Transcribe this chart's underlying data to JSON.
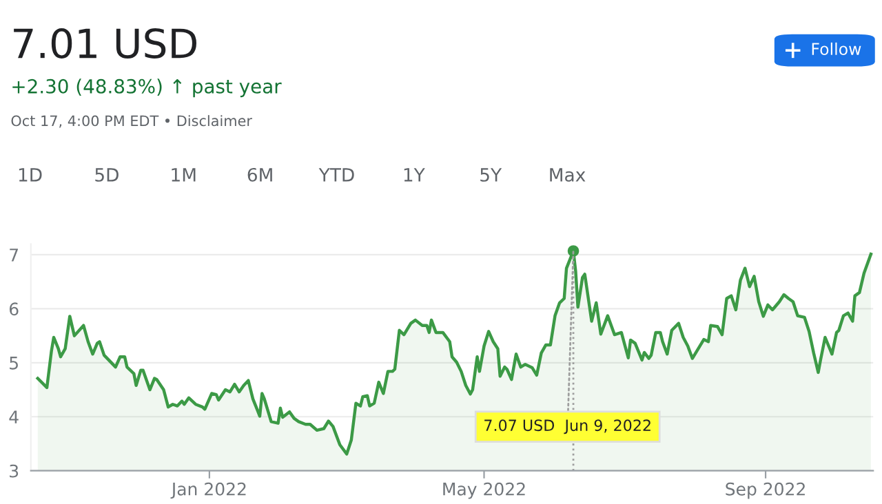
{
  "chart_data": {
    "type": "area",
    "title": "7.01 USD",
    "subtitle": "+2.30 (48.83%) ↑ past year",
    "annotations": [
      "Oct 17, 4:00 PM EDT • Disclaimer",
      "Follow",
      "1D",
      "5D",
      "1M",
      "6M",
      "YTD",
      "1Y",
      "5Y",
      "Max",
      {
        "text": "7.07 USD  Jun 9, 2022",
        "x": "2022-06-09",
        "y": 7.07
      }
    ],
    "x": [
      "2021-10-18",
      "2021-10-22",
      "2021-10-24",
      "2021-10-25",
      "2021-10-27",
      "2021-10-28",
      "2021-10-30",
      "2021-11-01",
      "2021-11-03",
      "2021-11-07",
      "2021-11-09",
      "2021-11-11",
      "2021-11-13",
      "2021-11-14",
      "2021-11-16",
      "2021-11-21",
      "2021-11-23",
      "2021-11-25",
      "2021-11-26",
      "2021-11-29",
      "2021-11-30",
      "2021-12-02",
      "2021-12-03",
      "2021-12-06",
      "2021-12-08",
      "2021-12-09",
      "2021-12-12",
      "2021-12-14",
      "2021-12-16",
      "2021-12-18",
      "2021-12-20",
      "2021-12-21",
      "2021-12-23",
      "2021-12-26",
      "2021-12-29",
      "2021-12-30",
      "2022-01-02",
      "2022-01-04",
      "2022-01-05",
      "2022-01-08",
      "2022-01-10",
      "2022-01-12",
      "2022-01-14",
      "2022-01-16",
      "2022-01-18",
      "2022-01-20",
      "2022-01-22",
      "2022-01-23",
      "2022-01-24",
      "2022-01-25",
      "2022-01-28",
      "2022-01-31",
      "2022-02-01",
      "2022-02-02",
      "2022-02-05",
      "2022-02-07",
      "2022-02-09",
      "2022-02-12",
      "2022-02-14",
      "2022-02-17",
      "2022-02-20",
      "2022-02-22",
      "2022-02-24",
      "2022-02-27",
      "2022-03-02",
      "2022-03-04",
      "2022-03-06",
      "2022-03-08",
      "2022-03-09",
      "2022-03-11",
      "2022-03-12",
      "2022-03-14",
      "2022-03-16",
      "2022-03-18",
      "2022-03-20",
      "2022-03-22",
      "2022-03-23",
      "2022-03-25",
      "2022-03-27",
      "2022-03-30",
      "2022-04-01",
      "2022-04-04",
      "2022-04-06",
      "2022-04-07",
      "2022-04-08",
      "2022-04-10",
      "2022-04-13",
      "2022-04-16",
      "2022-04-17",
      "2022-04-19",
      "2022-04-21",
      "2022-04-23",
      "2022-04-25",
      "2022-04-26",
      "2022-04-28",
      "2022-04-29",
      "2022-05-01",
      "2022-05-03",
      "2022-05-05",
      "2022-05-07",
      "2022-05-08",
      "2022-05-10",
      "2022-05-11",
      "2022-05-13",
      "2022-05-15",
      "2022-05-17",
      "2022-05-19",
      "2022-05-22",
      "2022-05-24",
      "2022-05-26",
      "2022-05-28",
      "2022-05-30",
      "2022-06-01",
      "2022-06-03",
      "2022-06-05",
      "2022-06-06",
      "2022-06-09",
      "2022-06-10",
      "2022-06-11",
      "2022-06-13",
      "2022-06-14",
      "2022-06-17",
      "2022-06-19",
      "2022-06-21",
      "2022-06-24",
      "2022-06-27",
      "2022-06-30",
      "2022-07-03",
      "2022-07-04",
      "2022-07-06",
      "2022-07-09",
      "2022-07-10",
      "2022-07-12",
      "2022-07-13",
      "2022-07-15",
      "2022-07-17",
      "2022-07-18",
      "2022-07-20",
      "2022-07-22",
      "2022-07-25",
      "2022-07-27",
      "2022-07-29",
      "2022-07-31",
      "2022-08-02",
      "2022-08-05",
      "2022-08-07",
      "2022-08-08",
      "2022-08-11",
      "2022-08-13",
      "2022-08-15",
      "2022-08-17",
      "2022-08-19",
      "2022-08-21",
      "2022-08-23",
      "2022-08-25",
      "2022-08-27",
      "2022-08-29",
      "2022-08-31",
      "2022-09-02",
      "2022-09-04",
      "2022-09-07",
      "2022-09-09",
      "2022-09-11",
      "2022-09-13",
      "2022-09-15",
      "2022-09-18",
      "2022-09-20",
      "2022-09-22",
      "2022-09-24",
      "2022-09-25",
      "2022-09-27",
      "2022-09-30",
      "2022-10-02",
      "2022-10-03",
      "2022-10-05",
      "2022-10-07",
      "2022-10-09",
      "2022-10-10",
      "2022-10-12",
      "2022-10-14",
      "2022-10-17"
    ],
    "series": [
      {
        "color": "#3c9a46",
        "values": [
          4.71,
          4.54,
          5.22,
          5.47,
          5.26,
          5.11,
          5.26,
          5.86,
          5.5,
          5.69,
          5.39,
          5.16,
          5.36,
          5.39,
          5.14,
          4.92,
          5.11,
          5.11,
          4.92,
          4.8,
          4.58,
          4.86,
          4.86,
          4.5,
          4.71,
          4.69,
          4.5,
          4.18,
          4.23,
          4.2,
          4.29,
          4.23,
          4.35,
          4.23,
          4.18,
          4.14,
          4.43,
          4.41,
          4.31,
          4.5,
          4.46,
          4.6,
          4.46,
          4.58,
          4.67,
          4.33,
          4.12,
          4.01,
          4.43,
          4.33,
          3.91,
          3.88,
          4.16,
          3.99,
          4.09,
          3.97,
          3.91,
          3.86,
          3.86,
          3.75,
          3.78,
          3.92,
          3.82,
          3.48,
          3.31,
          3.57,
          4.25,
          4.2,
          4.37,
          4.39,
          4.2,
          4.25,
          4.64,
          4.43,
          4.84,
          4.84,
          4.88,
          5.6,
          5.52,
          5.73,
          5.79,
          5.69,
          5.69,
          5.56,
          5.79,
          5.56,
          5.56,
          5.39,
          5.11,
          5.01,
          4.84,
          4.58,
          4.42,
          4.5,
          5.11,
          4.84,
          5.31,
          5.58,
          5.39,
          5.26,
          4.75,
          4.92,
          4.88,
          4.69,
          5.16,
          4.92,
          4.97,
          4.91,
          4.77,
          5.18,
          5.33,
          5.33,
          5.87,
          6.11,
          6.19,
          6.75,
          7.07,
          6.7,
          6.03,
          6.58,
          6.64,
          5.77,
          6.11,
          5.53,
          5.87,
          5.52,
          5.56,
          5.09,
          5.42,
          5.36,
          5.05,
          5.19,
          5.08,
          5.14,
          5.56,
          5.56,
          5.39,
          5.16,
          5.6,
          5.73,
          5.47,
          5.31,
          5.08,
          5.22,
          5.43,
          5.39,
          5.69,
          5.67,
          5.52,
          6.19,
          6.24,
          5.98,
          6.53,
          6.75,
          6.41,
          6.6,
          6.13,
          5.86,
          6.07,
          5.98,
          6.13,
          6.26,
          6.19,
          6.13,
          5.87,
          5.84,
          5.58,
          5.18,
          4.82,
          5.05,
          5.47,
          5.16,
          5.56,
          5.6,
          5.87,
          5.92,
          5.77,
          6.24,
          6.3,
          6.66,
          7.01
        ]
      }
    ],
    "ref_lines": [
      {
        "axis": "x",
        "value": "2022-06-09",
        "color": "#9e9e9e",
        "line_style": "dotted"
      }
    ],
    "xlim": [
      "2021-10-15",
      "2022-10-18"
    ],
    "xticks": [
      {
        "value": "2022-01-01",
        "label": "Jan 2022"
      },
      {
        "value": "2022-05-01",
        "label": "May 2022"
      },
      {
        "value": "2022-09-01",
        "label": "Sep 2022"
      }
    ],
    "ylim": [
      3,
      7.2
    ],
    "yticks": [
      3,
      4,
      5,
      6,
      7
    ],
    "grid": "y",
    "marker": "none",
    "line_style": "solid"
  }
}
